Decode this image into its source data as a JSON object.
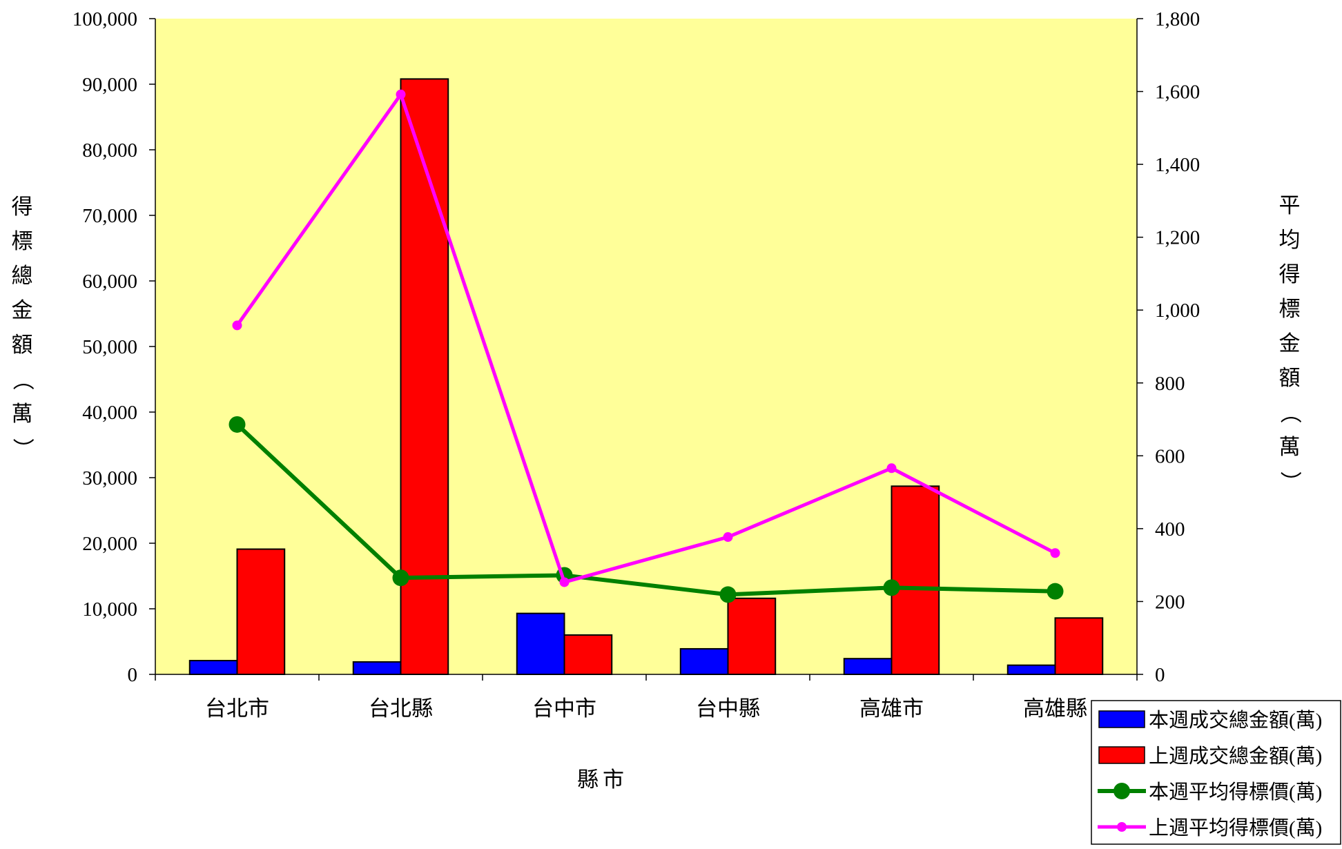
{
  "chart_data": {
    "type": "bar",
    "categories": [
      "台北市",
      "台北縣",
      "台中市",
      "台中縣",
      "高雄市",
      "高雄縣"
    ],
    "xlabel": "縣市",
    "ylabel": "得標總金額（萬）",
    "y2label": "平均得標金額（萬）",
    "ylim": [
      0,
      100000
    ],
    "y2lim": [
      0,
      1800
    ],
    "yticks": [
      "0",
      "10,000",
      "20,000",
      "30,000",
      "40,000",
      "50,000",
      "60,000",
      "70,000",
      "80,000",
      "90,000",
      "100,000"
    ],
    "y2ticks": [
      "0",
      "200",
      "400",
      "600",
      "800",
      "1,000",
      "1,200",
      "1,400",
      "1,600",
      "1,800"
    ],
    "grid": false,
    "plot_background": "#FFFF99",
    "legend_position": "bottom-right",
    "series": [
      {
        "name": "本週成交總金額(萬)",
        "kind": "bar",
        "axis": "left",
        "color": "#0000FF",
        "values": [
          2100,
          1900,
          9300,
          3900,
          2400,
          1400
        ]
      },
      {
        "name": "上週成交總金額(萬)",
        "kind": "bar",
        "axis": "left",
        "color": "#FF0000",
        "values": [
          19100,
          90800,
          6000,
          11600,
          28700,
          8600
        ]
      },
      {
        "name": "本週平均得標價(萬)",
        "kind": "line",
        "axis": "right",
        "color": "#008000",
        "values": [
          686,
          265,
          272,
          219,
          238,
          228
        ]
      },
      {
        "name": "上週平均得標價(萬)",
        "kind": "line",
        "axis": "right",
        "color": "#FF00FF",
        "values": [
          958,
          1592,
          253,
          377,
          566,
          333
        ]
      }
    ]
  }
}
